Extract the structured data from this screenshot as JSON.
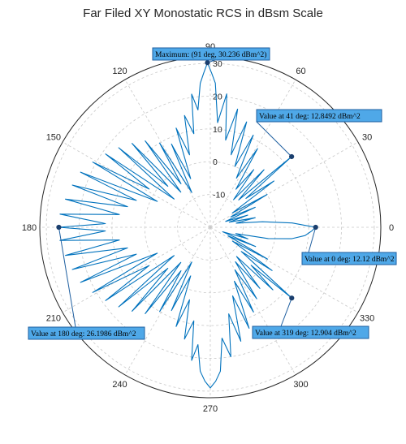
{
  "chart_data": {
    "type": "polar-line",
    "title": "Far Filed XY Monostatic RCS in dBsm Scale",
    "theta_unit": "deg",
    "r_unit": "dBsm",
    "rlim": [
      -20,
      32
    ],
    "r_ticks": [
      -10,
      0,
      10,
      20,
      30
    ],
    "theta_ticks": [
      0,
      30,
      60,
      90,
      120,
      150,
      180,
      210,
      240,
      270,
      300,
      330
    ],
    "grid": true,
    "line_color": "#0072BD",
    "series": [
      {
        "points": [
          [
            0,
            12.1
          ],
          [
            3,
            5
          ],
          [
            6,
            -4
          ],
          [
            9,
            -12
          ],
          [
            12,
            -6
          ],
          [
            15,
            -14
          ],
          [
            18,
            -8
          ],
          [
            21,
            -15
          ],
          [
            24,
            -5
          ],
          [
            27,
            -13
          ],
          [
            30,
            0
          ],
          [
            33,
            -12
          ],
          [
            36,
            4
          ],
          [
            39,
            -6
          ],
          [
            41,
            12.8
          ],
          [
            44,
            -8
          ],
          [
            47,
            4
          ],
          [
            50,
            -9
          ],
          [
            53,
            2
          ],
          [
            56,
            -6
          ],
          [
            59,
            8
          ],
          [
            62,
            -3
          ],
          [
            65,
            11
          ],
          [
            68,
            0
          ],
          [
            71,
            14
          ],
          [
            74,
            3
          ],
          [
            77,
            17
          ],
          [
            80,
            7
          ],
          [
            83,
            21
          ],
          [
            86,
            12
          ],
          [
            88,
            24
          ],
          [
            89.5,
            27
          ],
          [
            91,
            30.2
          ],
          [
            92.5,
            27
          ],
          [
            94,
            24
          ],
          [
            96,
            16
          ],
          [
            98,
            21
          ],
          [
            100,
            9
          ],
          [
            103,
            15
          ],
          [
            106,
            3
          ],
          [
            109,
            12
          ],
          [
            112,
            -4
          ],
          [
            115,
            8
          ],
          [
            118,
            -8
          ],
          [
            121,
            10
          ],
          [
            124,
            -4
          ],
          [
            127,
            13
          ],
          [
            130,
            -6
          ],
          [
            133,
            15
          ],
          [
            136,
            -2
          ],
          [
            139,
            17
          ],
          [
            142,
            -6
          ],
          [
            145,
            19
          ],
          [
            148,
            2
          ],
          [
            151,
            21
          ],
          [
            154,
            -2
          ],
          [
            157,
            23
          ],
          [
            160,
            4
          ],
          [
            163,
            24
          ],
          [
            166,
            6
          ],
          [
            169,
            25
          ],
          [
            172,
            8
          ],
          [
            175,
            26
          ],
          [
            178,
            12
          ],
          [
            180,
            26.2
          ],
          [
            182,
            12
          ],
          [
            185,
            26
          ],
          [
            188,
            8
          ],
          [
            191,
            25
          ],
          [
            194,
            6
          ],
          [
            197,
            24
          ],
          [
            200,
            4
          ],
          [
            203,
            23
          ],
          [
            206,
            -2
          ],
          [
            209,
            21
          ],
          [
            212,
            2
          ],
          [
            215,
            19
          ],
          [
            218,
            -6
          ],
          [
            221,
            17
          ],
          [
            224,
            -2
          ],
          [
            227,
            15
          ],
          [
            230,
            -6
          ],
          [
            233,
            13
          ],
          [
            236,
            -4
          ],
          [
            239,
            10
          ],
          [
            242,
            -8
          ],
          [
            245,
            8
          ],
          [
            248,
            -4
          ],
          [
            251,
            12
          ],
          [
            254,
            3
          ],
          [
            257,
            15
          ],
          [
            260,
            9
          ],
          [
            262,
            21
          ],
          [
            264,
            16
          ],
          [
            266,
            24
          ],
          [
            268,
            27
          ],
          [
            270,
            29
          ],
          [
            272,
            27
          ],
          [
            274,
            24
          ],
          [
            276,
            14
          ],
          [
            279,
            20
          ],
          [
            282,
            7
          ],
          [
            285,
            16
          ],
          [
            288,
            2
          ],
          [
            291,
            13
          ],
          [
            294,
            -2
          ],
          [
            297,
            9
          ],
          [
            300,
            -5
          ],
          [
            303,
            6
          ],
          [
            306,
            -7
          ],
          [
            309,
            4
          ],
          [
            312,
            -8
          ],
          [
            315,
            7
          ],
          [
            317,
            -3
          ],
          [
            319,
            12.9
          ],
          [
            322,
            -8
          ],
          [
            325,
            3
          ],
          [
            328,
            -12
          ],
          [
            331,
            0
          ],
          [
            334,
            -14
          ],
          [
            337,
            -5
          ],
          [
            340,
            -16
          ],
          [
            343,
            -8
          ],
          [
            346,
            -12
          ],
          [
            349,
            -2
          ],
          [
            352,
            5
          ],
          [
            355,
            9
          ],
          [
            358,
            11
          ],
          [
            360,
            12.1
          ]
        ]
      }
    ],
    "datatips": [
      {
        "text": "Maximum: (91 deg, 30.236 dBm^2)",
        "theta": 91,
        "r": 30.236
      },
      {
        "text": "Value at 41 deg: 12.8492 dBm^2",
        "theta": 41,
        "r": 12.8492
      },
      {
        "text": "Value at 0 deg: 12.12 dBm^2",
        "theta": 0,
        "r": 12.12
      },
      {
        "text": "Value at 319 deg: 12.904 dBm^2",
        "theta": 319,
        "r": 12.904
      },
      {
        "text": "Value at 180 deg: 26.1986 dBm^2",
        "theta": 180,
        "r": 26.1986
      }
    ]
  }
}
